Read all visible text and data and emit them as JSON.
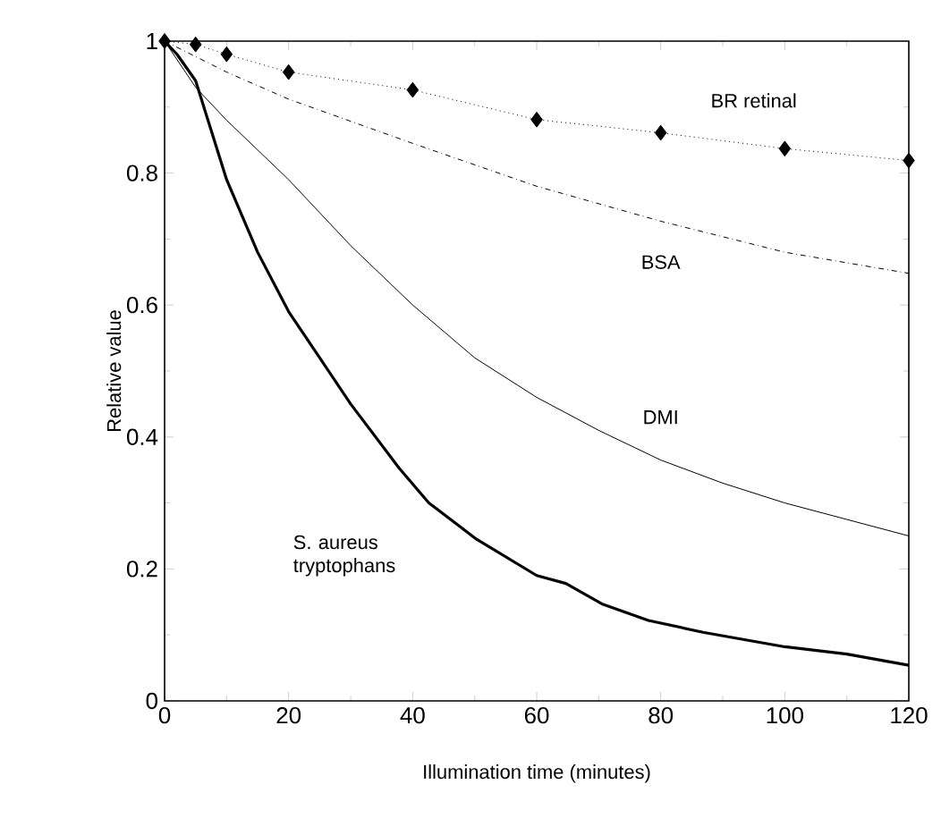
{
  "chart_data": {
    "type": "line",
    "xlabel": "Illumination time (minutes)",
    "ylabel": "Relative  value",
    "xlim": [
      0,
      120
    ],
    "ylim": [
      0,
      1
    ],
    "xticks": [
      0,
      20,
      40,
      60,
      80,
      100,
      120
    ],
    "yticks": [
      0,
      0.2,
      0.4,
      0.6,
      0.8,
      1
    ],
    "grid": false,
    "legend": false,
    "series": [
      {
        "name": "BR retinal",
        "color": "#000000",
        "line_style": "dotted",
        "marker": "diamond",
        "x": [
          0,
          5,
          10,
          20,
          40,
          60,
          80,
          100,
          120
        ],
        "values": [
          1,
          0.995,
          0.98,
          0.953,
          0.926,
          0.881,
          0.861,
          0.837,
          0.819
        ]
      },
      {
        "name": "BSA",
        "color": "#000000",
        "line_style": "dashed",
        "marker": "none",
        "x": [
          0,
          10,
          20,
          40,
          60,
          80,
          100,
          120
        ],
        "values": [
          1,
          0.953,
          0.912,
          0.845,
          0.78,
          0.727,
          0.68,
          0.648
        ]
      },
      {
        "name": "DMI",
        "color": "#000000",
        "line_style": "solid",
        "marker": "none",
        "x": [
          0,
          5,
          10,
          20,
          30,
          40,
          50,
          60,
          70,
          80,
          90,
          100,
          110,
          120
        ],
        "values": [
          1,
          0.93,
          0.88,
          0.79,
          0.69,
          0.6,
          0.52,
          0.46,
          0.41,
          0.365,
          0.33,
          0.3,
          0.275,
          0.25
        ]
      },
      {
        "name": "S. aureus tryptophans",
        "color": "#000000",
        "line_style": "solid",
        "marker": "none",
        "x": [
          0,
          2,
          5,
          10,
          15,
          20,
          25,
          30,
          37.8,
          42.6,
          50.3,
          60,
          64.7,
          70.5,
          78,
          86.8,
          100,
          110,
          120
        ],
        "values": [
          1,
          0.98,
          0.94,
          0.79,
          0.68,
          0.59,
          0.52,
          0.45,
          0.353,
          0.3,
          0.245,
          0.19,
          0.178,
          0.147,
          0.122,
          0.104,
          0.082,
          0.071,
          0.054
        ]
      }
    ]
  }
}
